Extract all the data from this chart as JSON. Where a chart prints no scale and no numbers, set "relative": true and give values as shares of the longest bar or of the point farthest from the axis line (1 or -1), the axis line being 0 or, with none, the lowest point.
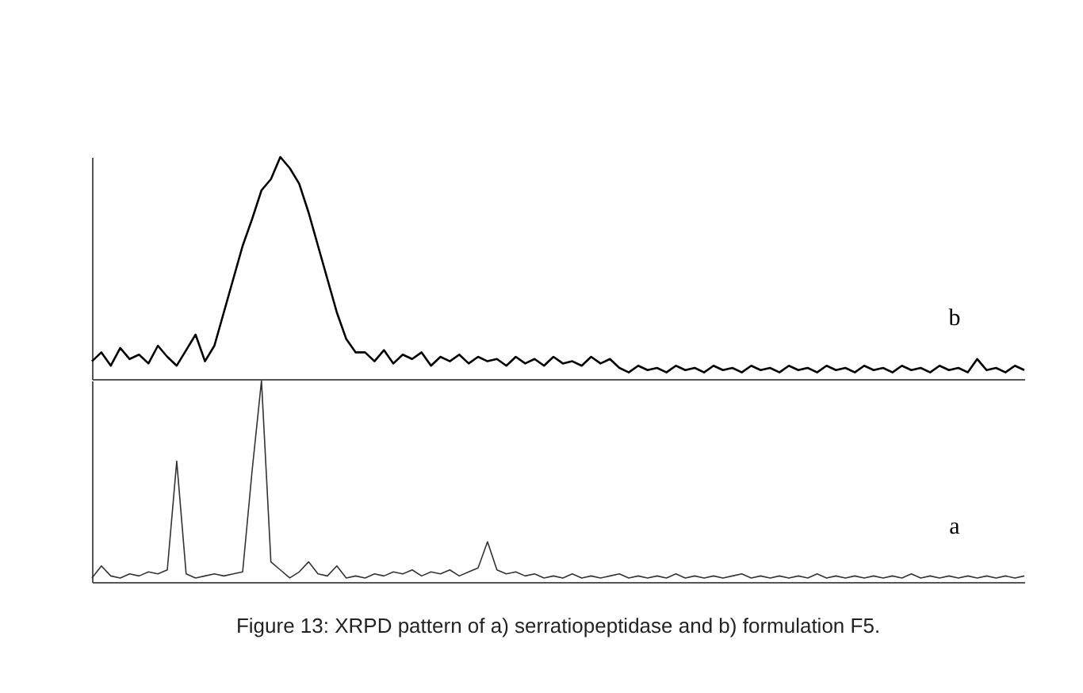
{
  "chart_data": [
    {
      "type": "line",
      "relative": true,
      "tick_labels": false,
      "categories": [
        null,
        null,
        null,
        null,
        null,
        null,
        null,
        null,
        null,
        null,
        null,
        null,
        null,
        null,
        null,
        null,
        null,
        null,
        null,
        null,
        null,
        null,
        null,
        null,
        null,
        null,
        null,
        null,
        null,
        null,
        null,
        null,
        null,
        null,
        null,
        null,
        null,
        null,
        null,
        null,
        null,
        null,
        null,
        null,
        null,
        null,
        null,
        null,
        null,
        null,
        null,
        null,
        null,
        null,
        null,
        null,
        null,
        null,
        null,
        null,
        null,
        null,
        null,
        null,
        null,
        null,
        null,
        null,
        null,
        null,
        null,
        null,
        null,
        null,
        null,
        null,
        null,
        null,
        null,
        null,
        null,
        null,
        null,
        null,
        null,
        null,
        null,
        null,
        null,
        null,
        null,
        null,
        null,
        null,
        null,
        null,
        null,
        null,
        null,
        null
      ],
      "series": [
        {
          "name": "b",
          "color": "#000000",
          "values": [
            0.08,
            0.12,
            0.06,
            0.14,
            0.09,
            0.11,
            0.07,
            0.15,
            0.1,
            0.06,
            0.13,
            0.2,
            0.08,
            0.15,
            0.3,
            0.45,
            0.6,
            0.72,
            0.85,
            0.9,
            1,
            0.95,
            0.88,
            0.75,
            0.6,
            0.45,
            0.3,
            0.18,
            0.12,
            0.12,
            0.08,
            0.13,
            0.07,
            0.11,
            0.09,
            0.12,
            0.06,
            0.1,
            0.08,
            0.11,
            0.07,
            0.1,
            0.08,
            0.09,
            0.06,
            0.1,
            0.07,
            0.09,
            0.06,
            0.1,
            0.07,
            0.08,
            0.06,
            0.1,
            0.07,
            0.09,
            0.05,
            0.03,
            0.06,
            0.04,
            0.05,
            0.03,
            0.06,
            0.04,
            0.05,
            0.03,
            0.06,
            0.04,
            0.05,
            0.03,
            0.06,
            0.04,
            0.05,
            0.03,
            0.06,
            0.04,
            0.05,
            0.03,
            0.06,
            0.04,
            0.05,
            0.03,
            0.06,
            0.04,
            0.05,
            0.03,
            0.06,
            0.04,
            0.05,
            0.03,
            0.06,
            0.04,
            0.05,
            0.03,
            0.09,
            0.04,
            0.05,
            0.03,
            0.06,
            0.04
          ]
        }
      ]
    },
    {
      "type": "line",
      "relative": true,
      "tick_labels": false,
      "categories": [
        null,
        null,
        null,
        null,
        null,
        null,
        null,
        null,
        null,
        null,
        null,
        null,
        null,
        null,
        null,
        null,
        null,
        null,
        null,
        null,
        null,
        null,
        null,
        null,
        null,
        null,
        null,
        null,
        null,
        null,
        null,
        null,
        null,
        null,
        null,
        null,
        null,
        null,
        null,
        null,
        null,
        null,
        null,
        null,
        null,
        null,
        null,
        null,
        null,
        null,
        null,
        null,
        null,
        null,
        null,
        null,
        null,
        null,
        null,
        null,
        null,
        null,
        null,
        null,
        null,
        null,
        null,
        null,
        null,
        null,
        null,
        null,
        null,
        null,
        null,
        null,
        null,
        null,
        null,
        null,
        null,
        null,
        null,
        null,
        null,
        null,
        null,
        null,
        null,
        null,
        null,
        null,
        null,
        null,
        null,
        null,
        null,
        null,
        null,
        null
      ],
      "series": [
        {
          "name": "a",
          "color": "#333333",
          "values": [
            0.02,
            0.08,
            0.03,
            0.02,
            0.04,
            0.03,
            0.05,
            0.04,
            0.06,
            0.6,
            0.04,
            0.02,
            0.03,
            0.04,
            0.03,
            0.04,
            0.05,
            0.55,
            1,
            0.1,
            0.06,
            0.02,
            0.05,
            0.1,
            0.04,
            0.03,
            0.08,
            0.02,
            0.03,
            0.02,
            0.04,
            0.03,
            0.05,
            0.04,
            0.06,
            0.03,
            0.05,
            0.04,
            0.06,
            0.03,
            0.05,
            0.07,
            0.2,
            0.06,
            0.04,
            0.05,
            0.03,
            0.04,
            0.02,
            0.03,
            0.02,
            0.04,
            0.02,
            0.03,
            0.02,
            0.03,
            0.04,
            0.02,
            0.03,
            0.02,
            0.03,
            0.02,
            0.04,
            0.02,
            0.03,
            0.02,
            0.03,
            0.02,
            0.03,
            0.04,
            0.02,
            0.03,
            0.02,
            0.03,
            0.02,
            0.03,
            0.02,
            0.04,
            0.02,
            0.03,
            0.02,
            0.03,
            0.02,
            0.03,
            0.02,
            0.03,
            0.02,
            0.04,
            0.02,
            0.03,
            0.02,
            0.03,
            0.02,
            0.03,
            0.02,
            0.03,
            0.02,
            0.03,
            0.02,
            0.03
          ]
        }
      ],
      "annotations": [
        "Figure 13: XRPD pattern of a) serratiopeptidase and b) formulation F5."
      ]
    }
  ]
}
